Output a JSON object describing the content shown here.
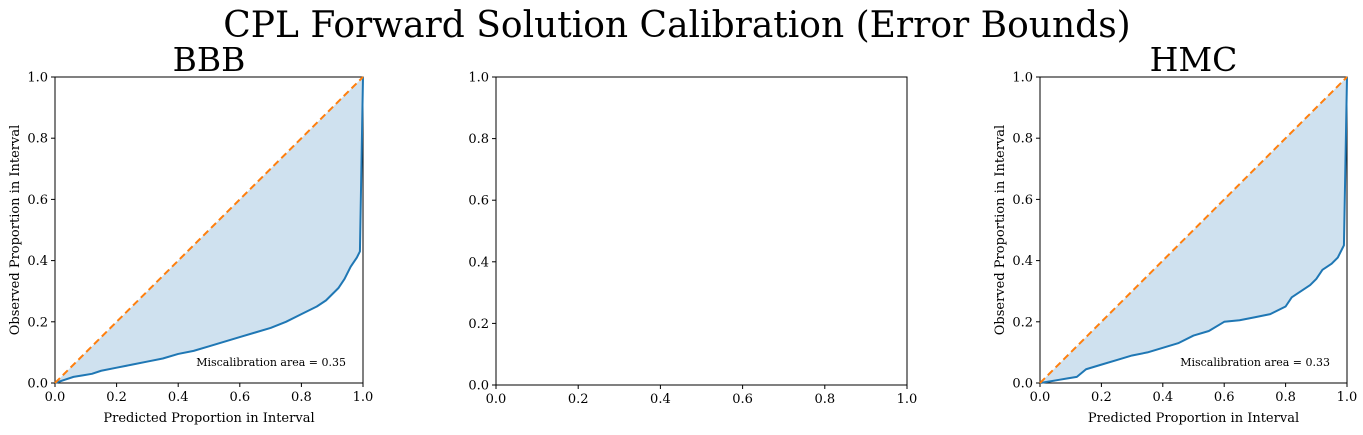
{
  "figure": {
    "suptitle": "CPL Forward Solution Calibration (Error Bounds)"
  },
  "colors": {
    "curve": "#1f77b4",
    "fill": "#cfe1ef",
    "ideal": "#ff7f0e",
    "axis": "#000000"
  },
  "chart_data": [
    {
      "type": "line",
      "title": "BBB",
      "xlabel": "Predicted Proportion in Interval",
      "ylabel": "Observed Proportion in Interval",
      "xlim": [
        0,
        1
      ],
      "ylim": [
        0,
        1
      ],
      "xticks": [
        "0.0",
        "0.2",
        "0.4",
        "0.6",
        "0.8",
        "1.0"
      ],
      "yticks": [
        "0.0",
        "0.2",
        "0.4",
        "0.6",
        "0.8",
        "1.0"
      ],
      "annotation": "Miscalibration area = 0.35",
      "series": [
        {
          "x": [
            0,
            0.03,
            0.06,
            0.09,
            0.12,
            0.15,
            0.2,
            0.25,
            0.3,
            0.35,
            0.4,
            0.45,
            0.5,
            0.55,
            0.6,
            0.65,
            0.7,
            0.75,
            0.8,
            0.85,
            0.88,
            0.9,
            0.92,
            0.94,
            0.96,
            0.98,
            0.99,
            1.0
          ],
          "y": [
            0,
            0.01,
            0.02,
            0.025,
            0.03,
            0.04,
            0.05,
            0.06,
            0.07,
            0.08,
            0.095,
            0.105,
            0.12,
            0.135,
            0.15,
            0.165,
            0.18,
            0.2,
            0.225,
            0.25,
            0.27,
            0.29,
            0.31,
            0.34,
            0.38,
            0.41,
            0.43,
            1.0
          ]
        },
        {
          "x": [
            0,
            1
          ],
          "y": [
            0,
            1
          ]
        }
      ]
    },
    {
      "type": "line",
      "title": "",
      "xlabel": "",
      "ylabel": "",
      "xlim": [
        0,
        1
      ],
      "ylim": [
        0,
        1
      ],
      "xticks": [
        "0.0",
        "0.2",
        "0.4",
        "0.6",
        "0.8",
        "1.0"
      ],
      "yticks": [
        "0.0",
        "0.2",
        "0.4",
        "0.6",
        "0.8",
        "1.0"
      ],
      "annotation": "",
      "series": []
    },
    {
      "type": "line",
      "title": "HMC",
      "xlabel": "Predicted Proportion in Interval",
      "ylabel": "Observed Proportion in Interval",
      "xlim": [
        0,
        1
      ],
      "ylim": [
        0,
        1
      ],
      "xticks": [
        "0.0",
        "0.2",
        "0.4",
        "0.6",
        "0.8",
        "1.0"
      ],
      "yticks": [
        "0.0",
        "0.2",
        "0.4",
        "0.6",
        "0.8",
        "1.0"
      ],
      "annotation": "Miscalibration area = 0.33",
      "series": [
        {
          "x": [
            0,
            0.03,
            0.06,
            0.09,
            0.12,
            0.15,
            0.2,
            0.25,
            0.3,
            0.35,
            0.4,
            0.45,
            0.5,
            0.55,
            0.6,
            0.65,
            0.7,
            0.75,
            0.8,
            0.82,
            0.85,
            0.88,
            0.9,
            0.92,
            0.95,
            0.97,
            0.99,
            1.0
          ],
          "y": [
            0,
            0.005,
            0.01,
            0.015,
            0.02,
            0.045,
            0.06,
            0.075,
            0.09,
            0.1,
            0.115,
            0.13,
            0.155,
            0.17,
            0.2,
            0.205,
            0.215,
            0.225,
            0.25,
            0.28,
            0.3,
            0.32,
            0.34,
            0.37,
            0.39,
            0.41,
            0.45,
            1.0
          ]
        },
        {
          "x": [
            0,
            1
          ],
          "y": [
            0,
            1
          ]
        }
      ]
    }
  ]
}
